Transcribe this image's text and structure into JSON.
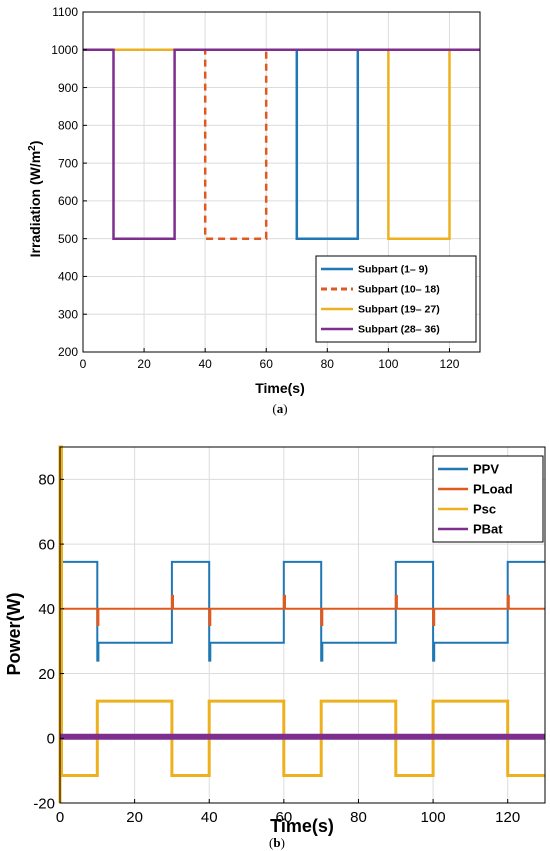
{
  "colors": {
    "blue": "#1f77b4",
    "orange": "#e05a1f",
    "yellow": "#edb120",
    "purple": "#7e2f8e",
    "grid": "#dcdcdc",
    "axis": "#000000"
  },
  "chart_data": [
    {
      "id": "a",
      "type": "line",
      "caption": "(a)",
      "caption_letter": "a",
      "xlabel": "Time(s)",
      "ylabel": "Irradiation (W/m²)",
      "xlim": [
        0,
        130
      ],
      "ylim": [
        200,
        1100
      ],
      "xticks": [
        0,
        20,
        40,
        60,
        80,
        100,
        120
      ],
      "yticks": [
        200,
        300,
        400,
        500,
        600,
        700,
        800,
        900,
        1000,
        1100
      ],
      "grid": true,
      "legend_position": "bottom-right",
      "series": [
        {
          "name": "Subpart (1– 9)",
          "color": "#1f77b4",
          "dash": "solid",
          "x": [
            0,
            70,
            70,
            90,
            90,
            130
          ],
          "y": [
            1000,
            1000,
            500,
            500,
            1000,
            1000
          ]
        },
        {
          "name": "Subpart (10– 18)",
          "color": "#e05a1f",
          "dash": "dashed",
          "x": [
            0,
            40,
            40,
            60,
            60,
            130
          ],
          "y": [
            1000,
            1000,
            500,
            500,
            1000,
            1000
          ]
        },
        {
          "name": "Subpart (19– 27)",
          "color": "#edb120",
          "dash": "solid",
          "x": [
            0,
            100,
            100,
            120,
            120,
            130
          ],
          "y": [
            1000,
            1000,
            500,
            500,
            1000,
            1000
          ]
        },
        {
          "name": "Subpart (28– 36)",
          "color": "#7e2f8e",
          "dash": "solid",
          "x": [
            0,
            10,
            10,
            30,
            30,
            130
          ],
          "y": [
            1000,
            1000,
            500,
            500,
            1000,
            1000
          ]
        }
      ]
    },
    {
      "id": "b",
      "type": "line",
      "caption": "(b)",
      "caption_letter": "b",
      "xlabel": "Time(s)",
      "ylabel": "Power(W)",
      "xlim": [
        0,
        130
      ],
      "ylim": [
        -20,
        90
      ],
      "xticks": [
        0,
        20,
        40,
        60,
        80,
        100,
        120
      ],
      "yticks": [
        -20,
        0,
        20,
        40,
        60,
        80
      ],
      "grid": true,
      "legend_position": "top-right",
      "series": [
        {
          "name": "PPV",
          "color": "#1f77b4",
          "width": 2,
          "x": [
            0,
            10,
            10,
            10.3,
            10.3,
            30,
            30,
            40,
            40,
            40.3,
            40.3,
            60,
            60,
            70,
            70,
            70.3,
            70.3,
            90,
            90,
            100,
            100,
            100.3,
            100.3,
            120,
            120,
            130
          ],
          "y": [
            54.5,
            54.5,
            24,
            24,
            29.5,
            29.5,
            54.5,
            54.5,
            24,
            24,
            29.5,
            29.5,
            54.5,
            54.5,
            24,
            24,
            29.5,
            29.5,
            54.5,
            54.5,
            24,
            24,
            29.5,
            29.5,
            54.5,
            54.5
          ]
        },
        {
          "name": "PLoad",
          "color": "#e05a1f",
          "width": 2,
          "x": [
            0,
            10,
            10,
            10.3,
            10.3,
            30,
            30,
            30.3,
            30.3,
            40,
            40,
            40.3,
            40.3,
            60,
            60,
            60.3,
            60.3,
            70,
            70,
            70.3,
            70.3,
            90,
            90,
            90.3,
            90.3,
            100,
            100,
            100.3,
            100.3,
            120,
            120,
            120.3,
            120.3,
            130
          ],
          "y": [
            40,
            40,
            35,
            35,
            40,
            40,
            44,
            44,
            40,
            40,
            35,
            35,
            40,
            40,
            44,
            44,
            40,
            40,
            35,
            35,
            40,
            40,
            44,
            44,
            40,
            40,
            35,
            35,
            40,
            40,
            44,
            44,
            40,
            40
          ]
        },
        {
          "name": "Psc",
          "color": "#edb120",
          "width": 3,
          "x": [
            0,
            0,
            0.4,
            0.4,
            10,
            10,
            30,
            30,
            40,
            40,
            60,
            60,
            70,
            70,
            90,
            90,
            100,
            100,
            120,
            120,
            130
          ],
          "y": [
            -20,
            90,
            90,
            -11.5,
            -11.5,
            11.5,
            11.5,
            -11.5,
            -11.5,
            11.5,
            11.5,
            -11.5,
            -11.5,
            11.5,
            11.5,
            -11.5,
            -11.5,
            11.5,
            11.5,
            -11.5,
            -11.5
          ]
        },
        {
          "name": "PBat",
          "color": "#7e2f8e",
          "width": 6,
          "x": [
            0,
            130
          ],
          "y": [
            0.5,
            0.5
          ]
        }
      ]
    }
  ]
}
